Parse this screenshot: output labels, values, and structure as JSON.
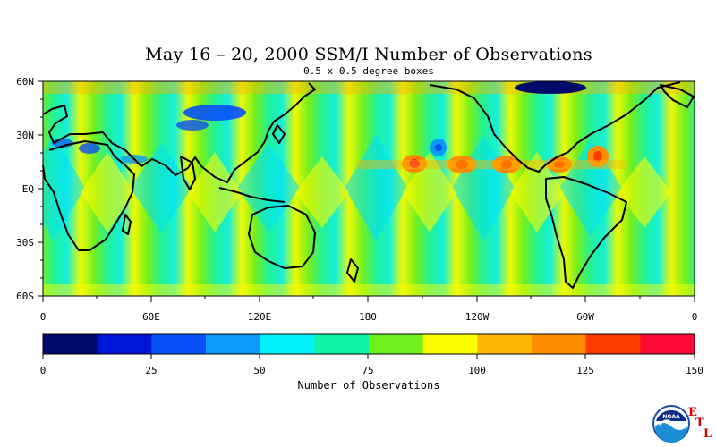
{
  "title": "May 16 – 20, 2000 SSM/I Number of Observations",
  "subtitle": "0.5 x 0.5 degree boxes",
  "map": {
    "lat_labels": [
      "60N",
      "30N",
      "EQ",
      "30S",
      "60S"
    ],
    "lon_labels": [
      "0",
      "60E",
      "120E",
      "180",
      "120W",
      "60W",
      "0"
    ]
  },
  "colorbar": {
    "title": "Number of Observations",
    "tick_labels": [
      "0",
      "25",
      "50",
      "75",
      "100",
      "125",
      "150"
    ],
    "colors": [
      "#000a6b",
      "#0016d6",
      "#0850f8",
      "#0a9cf7",
      "#00f1f9",
      "#10f2a6",
      "#70f01a",
      "#fdfb00",
      "#fdb500",
      "#fd8c00",
      "#fd3a00",
      "#fd0a36"
    ]
  },
  "logo": {
    "text": "NOAA",
    "letters": [
      "E",
      "T",
      "L"
    ]
  }
}
